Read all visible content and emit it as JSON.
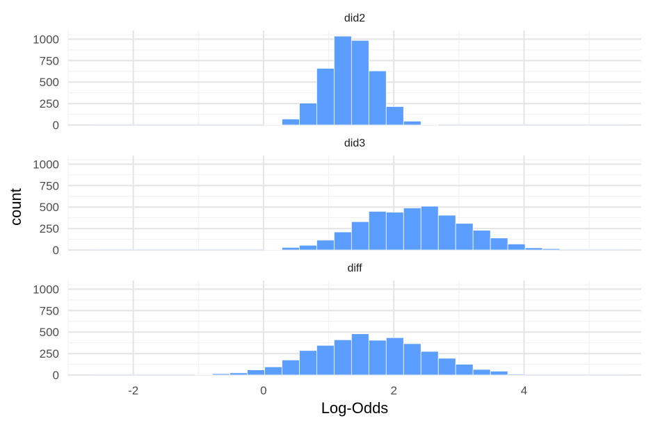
{
  "chart_data": {
    "type": "bar",
    "subtype": "faceted-histogram",
    "xlabel": "Log-Odds",
    "ylabel": "count",
    "xlim": [
      -3,
      5.8
    ],
    "ylim": [
      0,
      1100
    ],
    "x_ticks": [
      -2,
      0,
      2,
      4
    ],
    "x_tick_labels": [
      "-2",
      "0",
      "2",
      "4"
    ],
    "y_ticks": [
      0,
      250,
      500,
      750,
      1000
    ],
    "y_tick_labels": [
      "0",
      "250",
      "500",
      "750",
      "1000"
    ],
    "bin_start": -2.65,
    "bin_width": 0.2667,
    "grid": true,
    "bar_color": "#5b9eff",
    "bar_outline": "#ffffff",
    "facets": [
      {
        "name": "did2",
        "counts": [
          0,
          0,
          0,
          0,
          0,
          0,
          0,
          0,
          0,
          0,
          5,
          70,
          255,
          660,
          1035,
          985,
          630,
          215,
          45,
          3,
          0,
          0,
          0,
          0,
          0,
          0,
          0,
          0,
          0,
          0,
          0
        ]
      },
      {
        "name": "did3",
        "counts": [
          0,
          0,
          0,
          0,
          0,
          0,
          0,
          0,
          0,
          0,
          5,
          30,
          55,
          115,
          210,
          330,
          450,
          440,
          490,
          510,
          405,
          310,
          230,
          140,
          70,
          25,
          15,
          0,
          0,
          0,
          0
        ]
      },
      {
        "name": "diff",
        "counts": [
          0,
          0,
          0,
          0,
          0,
          0,
          3,
          15,
          25,
          60,
          95,
          175,
          285,
          345,
          410,
          480,
          405,
          435,
          365,
          275,
          195,
          125,
          65,
          45,
          10,
          0,
          0,
          0,
          0,
          0,
          0
        ]
      }
    ]
  }
}
